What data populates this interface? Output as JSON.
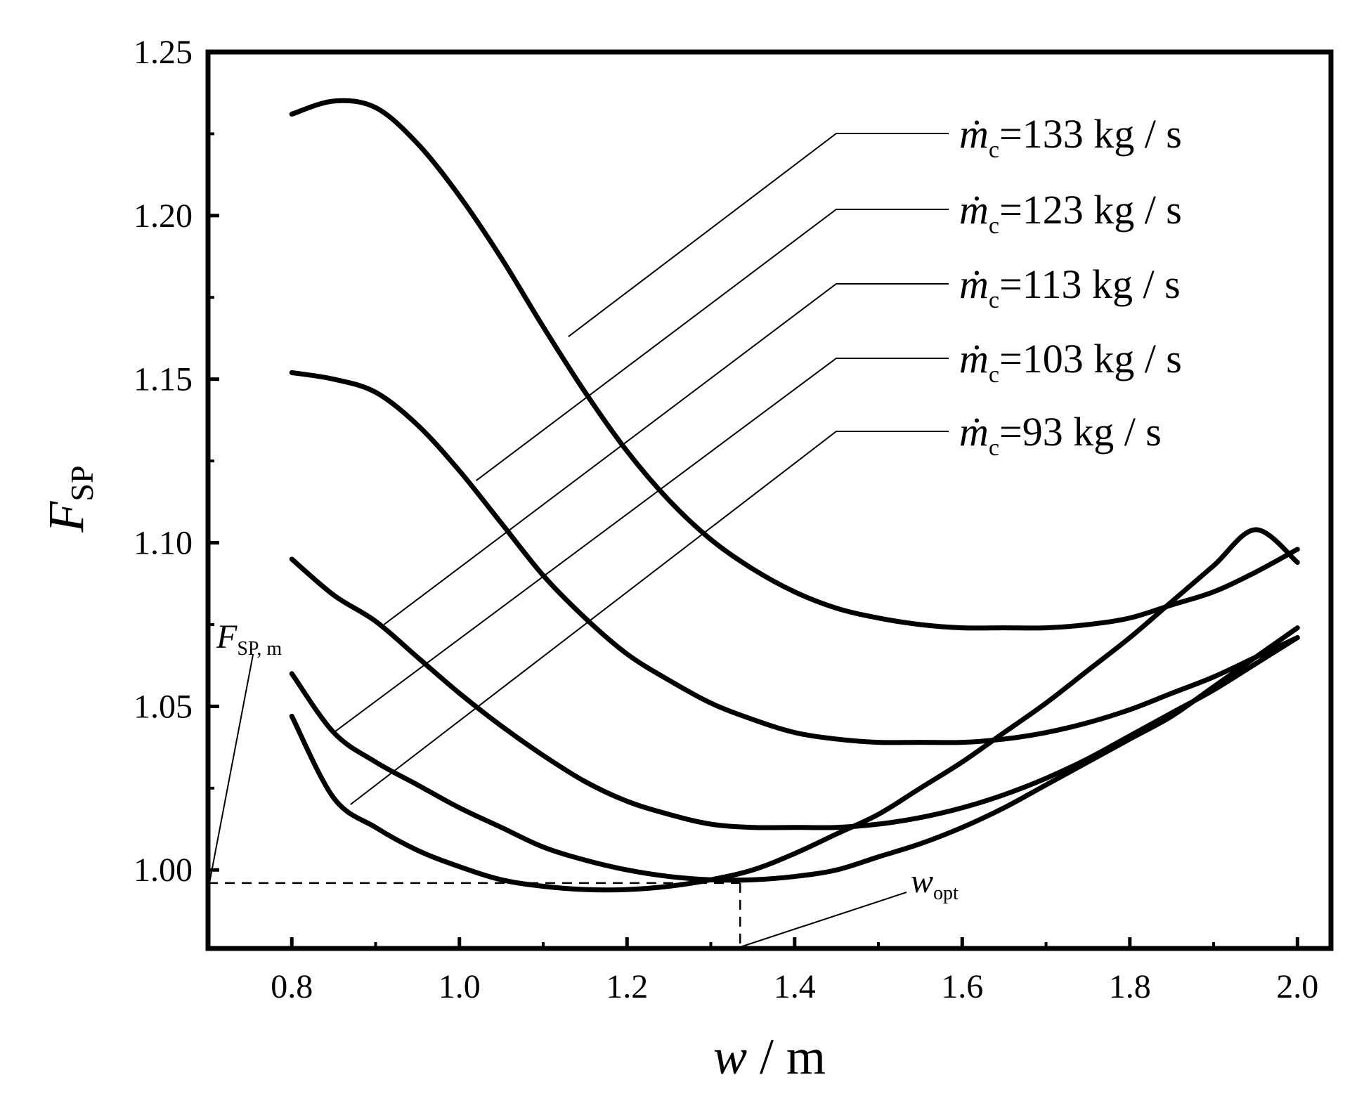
{
  "chart_data": {
    "type": "line",
    "xlabel": {
      "var": "w",
      "unit": "m",
      "sep": " / "
    },
    "ylabel": {
      "var": "F",
      "sub": "SP"
    },
    "xlim": [
      0.7,
      2.04
    ],
    "ylim": [
      0.976,
      1.25
    ],
    "xticks": [
      0.8,
      1.0,
      1.2,
      1.4,
      1.6,
      1.8,
      2.0
    ],
    "xtick_labels": [
      "0.8",
      "1.0",
      "1.2",
      "1.4",
      "1.6",
      "1.8",
      "2.0"
    ],
    "yticks": [
      1.0,
      1.05,
      1.1,
      1.15,
      1.2,
      1.25
    ],
    "ytick_labels": [
      "1.00",
      "1.05",
      "1.10",
      "1.15",
      "1.20",
      "1.25"
    ],
    "grid": false,
    "series": [
      {
        "name": "133",
        "label": "=133 kg / s",
        "x": [
          0.8,
          0.85,
          0.9,
          0.95,
          1.0,
          1.05,
          1.1,
          1.15,
          1.2,
          1.25,
          1.3,
          1.35,
          1.4,
          1.45,
          1.5,
          1.55,
          1.6,
          1.65,
          1.7,
          1.75,
          1.8,
          1.85,
          1.9,
          1.95,
          2.0
        ],
        "y": [
          1.231,
          1.235,
          1.233,
          1.222,
          1.206,
          1.187,
          1.166,
          1.146,
          1.128,
          1.113,
          1.101,
          1.092,
          1.085,
          1.08,
          1.077,
          1.075,
          1.074,
          1.074,
          1.074,
          1.075,
          1.077,
          1.081,
          1.085,
          1.091,
          1.098
        ]
      },
      {
        "name": "123",
        "label": "=123 kg / s",
        "x": [
          0.8,
          0.85,
          0.9,
          0.95,
          1.0,
          1.05,
          1.1,
          1.15,
          1.2,
          1.25,
          1.3,
          1.35,
          1.4,
          1.45,
          1.5,
          1.55,
          1.6,
          1.65,
          1.7,
          1.75,
          1.8,
          1.85,
          1.9,
          1.95,
          2.0
        ],
        "y": [
          1.152,
          1.15,
          1.146,
          1.136,
          1.122,
          1.106,
          1.09,
          1.077,
          1.066,
          1.058,
          1.051,
          1.046,
          1.042,
          1.04,
          1.039,
          1.039,
          1.039,
          1.04,
          1.042,
          1.045,
          1.049,
          1.054,
          1.059,
          1.065,
          1.071
        ]
      },
      {
        "name": "113",
        "label": "=113 kg / s",
        "x": [
          0.8,
          0.85,
          0.9,
          0.95,
          1.0,
          1.05,
          1.1,
          1.15,
          1.2,
          1.25,
          1.3,
          1.35,
          1.4,
          1.45,
          1.5,
          1.55,
          1.6,
          1.65,
          1.7,
          1.75,
          1.8,
          1.85,
          1.9,
          1.95,
          2.0
        ],
        "y": [
          1.095,
          1.084,
          1.076,
          1.065,
          1.054,
          1.044,
          1.035,
          1.027,
          1.021,
          1.017,
          1.014,
          1.013,
          1.013,
          1.013,
          1.014,
          1.016,
          1.019,
          1.023,
          1.028,
          1.034,
          1.041,
          1.048,
          1.055,
          1.063,
          1.071
        ]
      },
      {
        "name": "103",
        "label": "=103 kg / s",
        "x": [
          0.8,
          0.85,
          0.9,
          0.95,
          1.0,
          1.05,
          1.1,
          1.15,
          1.2,
          1.25,
          1.3,
          1.35,
          1.4,
          1.45,
          1.5,
          1.55,
          1.6,
          1.65,
          1.7,
          1.75,
          1.8,
          1.85,
          1.9,
          1.95,
          2.0
        ],
        "y": [
          1.06,
          1.042,
          1.033,
          1.026,
          1.019,
          1.013,
          1.007,
          1.003,
          1.0,
          0.998,
          0.997,
          0.997,
          0.998,
          1.0,
          1.004,
          1.008,
          1.013,
          1.019,
          1.026,
          1.033,
          1.04,
          1.047,
          1.056,
          1.065,
          1.074
        ]
      },
      {
        "name": "93",
        "label": "=93 kg / s",
        "x": [
          0.8,
          0.85,
          0.9,
          0.95,
          1.0,
          1.05,
          1.1,
          1.15,
          1.2,
          1.25,
          1.3,
          1.35,
          1.4,
          1.45,
          1.5,
          1.55,
          1.6,
          1.65,
          1.7,
          1.75,
          1.8,
          1.85,
          1.9,
          1.95,
          2.0
        ],
        "y": [
          1.047,
          1.022,
          1.013,
          1.006,
          1.001,
          0.997,
          0.995,
          0.994,
          0.994,
          0.995,
          0.997,
          1.0,
          1.005,
          1.011,
          1.017,
          1.025,
          1.033,
          1.042,
          1.051,
          1.061,
          1.071,
          1.082,
          1.093,
          1.104,
          1.094
        ]
      }
    ],
    "legend": {
      "prefix_var": "ṁ",
      "prefix_sub": "c",
      "placement": "top-right",
      "entries": [
        "=133 kg / s",
        "=123 kg / s",
        "=113 kg / s",
        "=103 kg / s",
        "=93 kg / s"
      ],
      "pointer_targets": [
        {
          "series": "133",
          "x": 1.13,
          "y": 1.163
        },
        {
          "series": "123",
          "x": 1.02,
          "y": 1.119
        },
        {
          "series": "113",
          "x": 0.91,
          "y": 1.075
        },
        {
          "series": "103",
          "x": 0.85,
          "y": 1.042
        },
        {
          "series": "93",
          "x": 0.87,
          "y": 1.02
        }
      ]
    },
    "annotations": {
      "fsp_m": {
        "var": "F",
        "sub": "SP, m",
        "value": 0.996
      },
      "w_opt": {
        "var": "w",
        "sub": "opt",
        "value": 1.335
      }
    }
  }
}
